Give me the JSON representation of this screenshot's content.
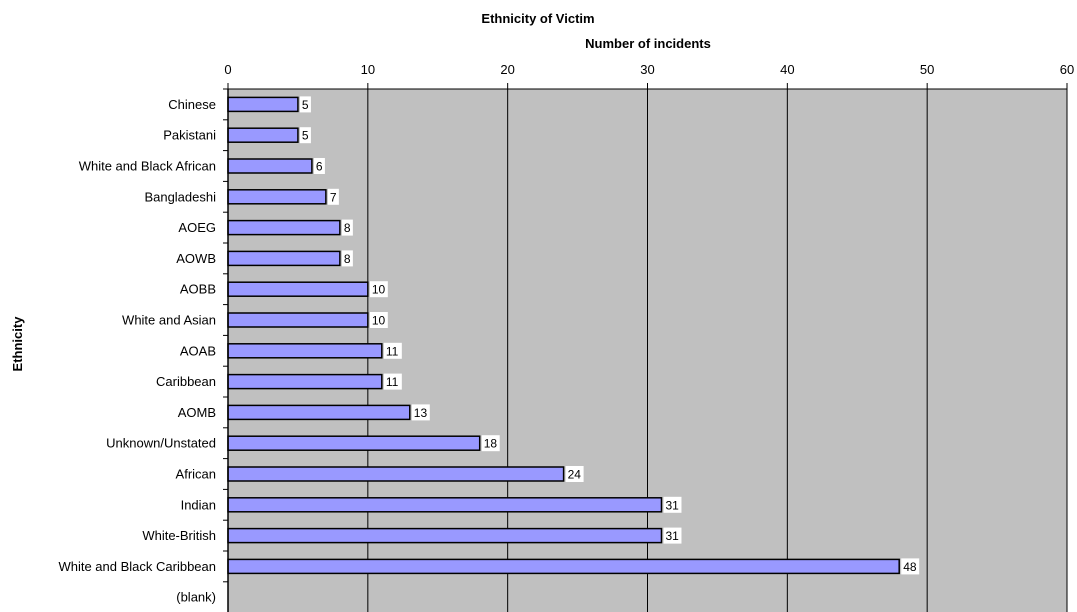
{
  "chart_data": {
    "type": "bar",
    "orientation": "horizontal",
    "title": "Ethnicity of Victim",
    "xlabel": "Number of incidents",
    "ylabel": "Ethnicity",
    "xlim": [
      0,
      60
    ],
    "x_ticks": [
      0,
      10,
      20,
      30,
      40,
      50,
      60
    ],
    "x_axis_position": "top",
    "grid": "vertical",
    "legend": "none",
    "categories": [
      "Chinese",
      "Pakistani",
      "White and Black African",
      "Bangladeshi",
      "AOEG",
      "AOWB",
      "AOBB",
      "White and Asian",
      "AOAB",
      "Caribbean",
      "AOMB",
      "Unknown/Unstated",
      "African",
      "Indian",
      "White-British",
      "White and Black Caribbean",
      "(blank)"
    ],
    "values": [
      5,
      5,
      6,
      7,
      8,
      8,
      10,
      10,
      11,
      11,
      13,
      18,
      24,
      31,
      31,
      48,
      null
    ],
    "data_labels": [
      "5",
      "5",
      "6",
      "7",
      "8",
      "8",
      "10",
      "10",
      "11",
      "11",
      "13",
      "18",
      "24",
      "31",
      "31",
      "48",
      ""
    ],
    "colors": {
      "bar_fill": "#9999ff",
      "bar_stroke": "#000000",
      "plot_background": "#c0c0c0",
      "gridline": "#000000"
    }
  }
}
